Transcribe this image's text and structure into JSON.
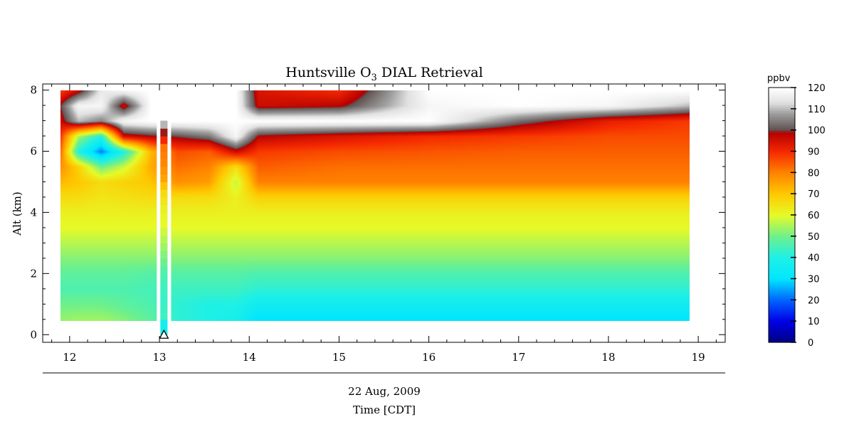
{
  "chart_data": {
    "type": "heatmap",
    "title": {
      "prefix": "Huntsville O",
      "subscript": "3",
      "suffix": " DIAL Retrieval"
    },
    "ylabel": "Alt (km)",
    "xlabel_date": "22 Aug, 2009",
    "xlabel": "Time [CDT]",
    "xlim": [
      11.7,
      19.3
    ],
    "ylim": [
      -0.25,
      8.2
    ],
    "x_ticks": [
      12,
      13,
      14,
      15,
      16,
      17,
      18,
      19
    ],
    "y_ticks": [
      0,
      2,
      4,
      6,
      8
    ],
    "colorbar": {
      "unit": "ppbv",
      "range": [
        0,
        120
      ],
      "ticks": [
        0,
        10,
        20,
        30,
        40,
        50,
        60,
        70,
        80,
        90,
        100,
        110,
        120
      ]
    },
    "data_extent": {
      "x": [
        11.9,
        18.9
      ],
      "y": [
        0.45,
        8.0
      ]
    },
    "gap": {
      "x": [
        12.97,
        13.13
      ],
      "column_bottom": 0.0
    },
    "marker": {
      "symbol": "triangle",
      "x": 13.05,
      "y": 0.0
    },
    "profile_altitudes": [
      0.5,
      1.0,
      1.5,
      2.0,
      2.5,
      3.0,
      3.5,
      4.0,
      4.5,
      5.0,
      5.5,
      6.0,
      6.5,
      7.0,
      7.5,
      8.0
    ],
    "profiles": [
      {
        "x": 11.9,
        "values": [
          53,
          50,
          46,
          48,
          52,
          56,
          60,
          62,
          66,
          72,
          78,
          82,
          88,
          96,
          100,
          88
        ]
      },
      {
        "x": 12.1,
        "values": [
          54,
          50,
          46,
          48,
          52,
          56,
          60,
          62,
          66,
          70,
          68,
          40,
          55,
          110,
          118,
          96
        ]
      },
      {
        "x": 12.35,
        "values": [
          54,
          50,
          46,
          48,
          52,
          56,
          60,
          62,
          64,
          66,
          50,
          22,
          40,
          105,
          118,
          115
        ]
      },
      {
        "x": 12.6,
        "values": [
          52,
          48,
          46,
          48,
          52,
          56,
          60,
          62,
          65,
          68,
          58,
          40,
          95,
          118,
          95,
          118
        ]
      },
      {
        "x": 12.9,
        "values": [
          48,
          46,
          45,
          47,
          52,
          56,
          60,
          62,
          66,
          70,
          74,
          72,
          98,
          120,
          120,
          120
        ]
      },
      {
        "x": 13.2,
        "values": [
          42,
          42,
          44,
          47,
          52,
          56,
          60,
          62,
          66,
          78,
          82,
          86,
          100,
          120,
          120,
          120
        ]
      },
      {
        "x": 13.55,
        "values": [
          40,
          40,
          44,
          47,
          52,
          56,
          60,
          62,
          66,
          76,
          80,
          84,
          104,
          120,
          120,
          120
        ]
      },
      {
        "x": 13.85,
        "values": [
          38,
          40,
          44,
          47,
          52,
          56,
          60,
          62,
          62,
          57,
          66,
          96,
          118,
          120,
          120,
          120
        ]
      },
      {
        "x": 14.1,
        "values": [
          30,
          36,
          42,
          46,
          52,
          56,
          60,
          62,
          68,
          80,
          84,
          88,
          98,
          120,
          96,
          94
        ]
      },
      {
        "x": 15.0,
        "values": [
          30,
          36,
          42,
          46,
          52,
          56,
          60,
          62,
          68,
          80,
          82,
          86,
          94,
          120,
          98,
          90
        ]
      },
      {
        "x": 16.0,
        "values": [
          30,
          36,
          42,
          46,
          52,
          56,
          60,
          62,
          68,
          80,
          82,
          85,
          90,
          120,
          118,
          120
        ]
      },
      {
        "x": 17.0,
        "values": [
          30,
          36,
          42,
          46,
          52,
          56,
          60,
          62,
          68,
          80,
          82,
          84,
          88,
          103,
          120,
          120
        ]
      },
      {
        "x": 18.0,
        "values": [
          30,
          36,
          42,
          46,
          52,
          56,
          60,
          62,
          68,
          80,
          82,
          84,
          86,
          92,
          118,
          120
        ]
      },
      {
        "x": 18.9,
        "values": [
          30,
          36,
          42,
          46,
          52,
          56,
          60,
          62,
          68,
          80,
          82,
          84,
          86,
          88,
          110,
          120
        ]
      }
    ]
  }
}
